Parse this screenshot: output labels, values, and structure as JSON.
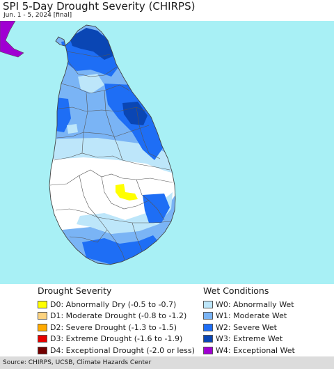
{
  "header": {
    "title": "SPI 5-Day Drought Severity (CHIRPS)",
    "subtitle": "Jun. 1 - 5, 2024 [final]"
  },
  "map": {
    "ocean_color": "#a8f0f5",
    "land_color": "#ffffff",
    "boundary_color": "#555555"
  },
  "legend": {
    "drought": {
      "heading": "Drought Severity",
      "items": [
        {
          "label": "D0: Abnormally Dry (-0.5 to -0.7)",
          "color": "#ffff00"
        },
        {
          "label": "D1: Moderate Drought (-0.8 to -1.2)",
          "color": "#fcd37f"
        },
        {
          "label": "D2: Severe Drought (-1.3 to -1.5)",
          "color": "#ffaa00"
        },
        {
          "label": "D3: Extreme Drought (-1.6 to -1.9)",
          "color": "#e60000"
        },
        {
          "label": "D4: Exceptional Drought (-2.0 or less)",
          "color": "#730000"
        }
      ]
    },
    "wet": {
      "heading": "Wet Conditions",
      "items": [
        {
          "label": "W0: Abnormally Wet",
          "color": "#bde6fa"
        },
        {
          "label": "W1: Moderate Wet",
          "color": "#7ab4f5"
        },
        {
          "label": "W2: Severe Wet",
          "color": "#1e6ef5"
        },
        {
          "label": "W3: Extreme Wet",
          "color": "#0a46b4"
        },
        {
          "label": "W4: Exceptional Wet",
          "color": "#a000d2"
        }
      ]
    }
  },
  "footer": {
    "source": "Source: CHIRPS, UCSB, Climate Hazards Center"
  }
}
